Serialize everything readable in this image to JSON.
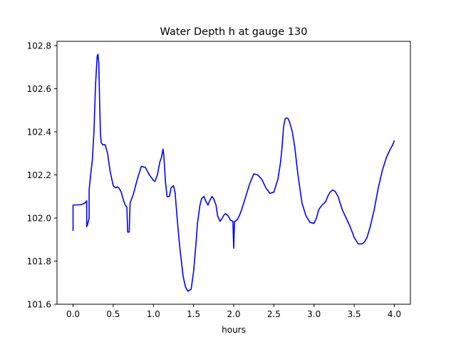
{
  "chart_data": {
    "type": "line",
    "title": "Water Depth h at gauge 130",
    "xlabel": "hours",
    "ylabel": "",
    "xlim": [
      -0.2,
      4.2
    ],
    "ylim": [
      101.6,
      102.82
    ],
    "xticks": [
      0.0,
      0.5,
      1.0,
      1.5,
      2.0,
      2.5,
      3.0,
      3.5,
      4.0
    ],
    "xtick_labels": [
      "0.0",
      "0.5",
      "1.0",
      "1.5",
      "2.0",
      "2.5",
      "3.0",
      "3.5",
      "4.0"
    ],
    "yticks": [
      101.6,
      101.8,
      102.0,
      102.2,
      102.4,
      102.6,
      102.8
    ],
    "ytick_labels": [
      "101.6",
      "101.8",
      "102.0",
      "102.2",
      "102.4",
      "102.6",
      "102.8"
    ],
    "grid": false,
    "series": [
      {
        "color": "#0000ff",
        "x": [
          0.0,
          0.0,
          0.1,
          0.15,
          0.17,
          0.17,
          0.18,
          0.2,
          0.2,
          0.21,
          0.24,
          0.26,
          0.28,
          0.3,
          0.31,
          0.32,
          0.33,
          0.34,
          0.35,
          0.37,
          0.4,
          0.43,
          0.46,
          0.5,
          0.53,
          0.55,
          0.57,
          0.6,
          0.63,
          0.65,
          0.67,
          0.68,
          0.7,
          0.7,
          0.71,
          0.75,
          0.8,
          0.85,
          0.9,
          0.95,
          1.0,
          1.02,
          1.05,
          1.08,
          1.1,
          1.11,
          1.12,
          1.13,
          1.15,
          1.17,
          1.2,
          1.22,
          1.25,
          1.27,
          1.3,
          1.33,
          1.37,
          1.4,
          1.43,
          1.47,
          1.5,
          1.53,
          1.55,
          1.58,
          1.6,
          1.63,
          1.65,
          1.68,
          1.7,
          1.73,
          1.75,
          1.78,
          1.8,
          1.83,
          1.85,
          1.88,
          1.9,
          1.93,
          1.96,
          1.99,
          2.0,
          2.01,
          2.01,
          2.02,
          2.05,
          2.08,
          2.1,
          2.15,
          2.2,
          2.25,
          2.3,
          2.35,
          2.4,
          2.45,
          2.5,
          2.55,
          2.58,
          2.6,
          2.62,
          2.64,
          2.66,
          2.68,
          2.7,
          2.73,
          2.76,
          2.8,
          2.85,
          2.9,
          2.95,
          3.0,
          3.03,
          3.06,
          3.1,
          3.13,
          3.15,
          3.17,
          3.2,
          3.23,
          3.26,
          3.3,
          3.35,
          3.4,
          3.45,
          3.5,
          3.55,
          3.58,
          3.6,
          3.63,
          3.66,
          3.7,
          3.75,
          3.8,
          3.85,
          3.9,
          3.95,
          3.98,
          4.0
        ],
        "y": [
          101.94,
          102.06,
          102.062,
          102.07,
          102.08,
          101.96,
          101.97,
          102.0,
          102.13,
          102.17,
          102.27,
          102.4,
          102.62,
          102.75,
          102.76,
          102.72,
          102.55,
          102.4,
          102.35,
          102.34,
          102.34,
          102.3,
          102.22,
          102.15,
          102.14,
          102.145,
          102.14,
          102.12,
          102.08,
          102.06,
          102.05,
          101.935,
          101.935,
          101.945,
          102.07,
          102.11,
          102.18,
          102.24,
          102.235,
          102.2,
          102.175,
          102.17,
          102.2,
          102.26,
          102.28,
          102.3,
          102.32,
          102.29,
          102.17,
          102.1,
          102.1,
          102.14,
          102.15,
          102.12,
          101.98,
          101.86,
          101.73,
          101.68,
          101.66,
          101.67,
          101.75,
          101.88,
          101.98,
          102.06,
          102.09,
          102.1,
          102.08,
          102.06,
          102.08,
          102.1,
          102.09,
          102.06,
          102.01,
          101.985,
          101.995,
          102.015,
          102.02,
          102.01,
          101.99,
          101.985,
          101.86,
          101.985,
          101.985,
          101.985,
          101.995,
          102.02,
          102.04,
          102.1,
          102.16,
          102.205,
          102.2,
          102.18,
          102.14,
          102.115,
          102.12,
          102.18,
          102.25,
          102.32,
          102.42,
          102.46,
          102.465,
          102.46,
          102.44,
          102.4,
          102.33,
          102.2,
          102.07,
          102.01,
          101.98,
          101.975,
          102.0,
          102.04,
          102.06,
          102.07,
          102.08,
          102.1,
          102.12,
          102.13,
          102.125,
          102.1,
          102.04,
          102.0,
          101.96,
          101.91,
          101.88,
          101.88,
          101.88,
          101.89,
          101.91,
          101.96,
          102.04,
          102.14,
          102.22,
          102.28,
          102.32,
          102.34,
          102.36
        ]
      }
    ]
  }
}
